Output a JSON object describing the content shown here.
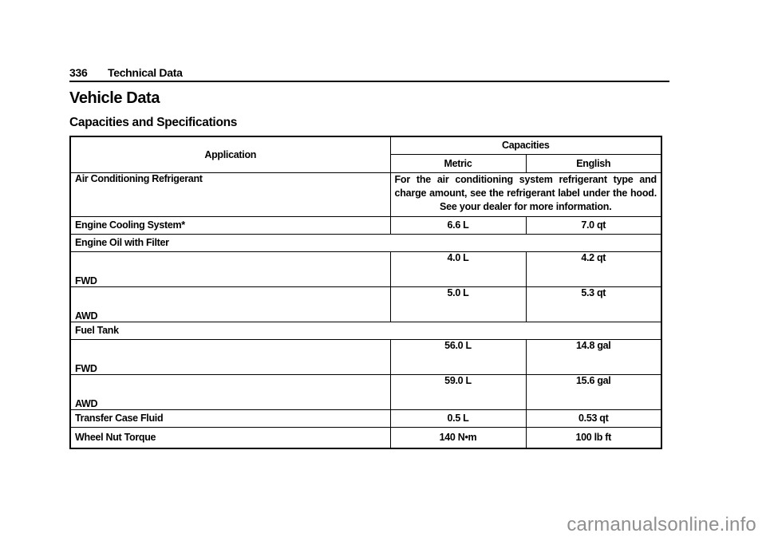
{
  "page_header": {
    "page_number": "336",
    "chapter": "Technical Data"
  },
  "section_title": "Vehicle Data",
  "subsection_title": "Capacities and Specifications",
  "table": {
    "header": {
      "application": "Application",
      "capacities": "Capacities",
      "metric": "Metric",
      "english": "English"
    },
    "rows": {
      "ac_refrigerant": {
        "label": "Air Conditioning Refrigerant",
        "note": "For the air conditioning system refrigerant type and charge amount, see the refrigerant label under the hood. See your dealer for more information."
      },
      "engine_cooling": {
        "label": "Engine Cooling System*",
        "metric": "6.6 L",
        "english": "7.0 qt"
      },
      "engine_oil_section": {
        "label": "Engine Oil with Filter"
      },
      "engine_oil_fwd": {
        "label": "FWD",
        "metric": "4.0 L",
        "english": "4.2 qt"
      },
      "engine_oil_awd": {
        "label": "AWD",
        "metric": "5.0 L",
        "english": "5.3 qt"
      },
      "fuel_tank_section": {
        "label": "Fuel Tank"
      },
      "fuel_tank_fwd": {
        "label": "FWD",
        "metric": "56.0 L",
        "english": "14.8 gal"
      },
      "fuel_tank_awd": {
        "label": "AWD",
        "metric": "59.0 L",
        "english": "15.6 gal"
      },
      "transfer_case": {
        "label": "Transfer Case Fluid",
        "metric": "0.5 L",
        "english": "0.53 qt"
      },
      "wheel_nut_torque": {
        "label": "Wheel Nut Torque",
        "metric": "140 N•m",
        "english": "100 lb ft"
      }
    }
  },
  "watermark": "carmanualsonline.info",
  "colors": {
    "text": "#000000",
    "background": "#ffffff",
    "watermark_gray": "#8f8f8f"
  }
}
